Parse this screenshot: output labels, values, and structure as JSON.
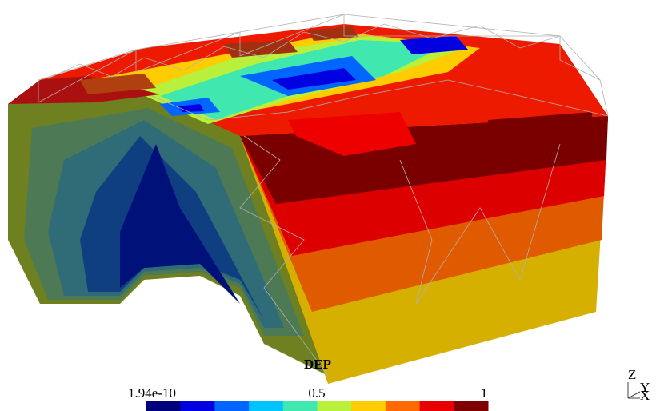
{
  "colorbar": {
    "title": "DEP",
    "labels": [
      "1.94e-10",
      "0.5",
      "1"
    ],
    "colors": [
      "#00007f",
      "#0000e0",
      "#0066ff",
      "#00c4ff",
      "#40e8b0",
      "#b8f03c",
      "#ffcc00",
      "#ff6a00",
      "#e80000",
      "#800000"
    ]
  },
  "axes": {
    "z": "Z",
    "y": "Y",
    "x": "X"
  }
}
